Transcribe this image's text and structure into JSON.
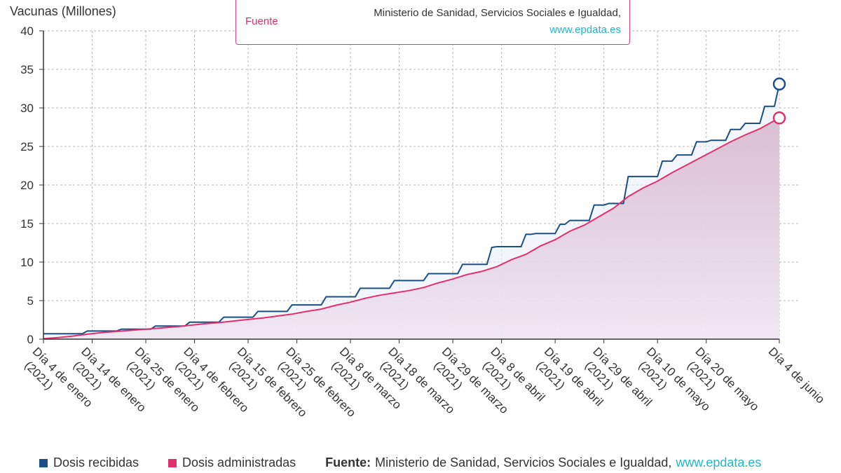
{
  "page": {
    "y_axis_title": "Vacunas (Millones)",
    "tooltip": {
      "label": "Fuente",
      "source": "Ministerio de Sanidad, Servicios Sociales e Igualdad,",
      "link": "www.epdata.es"
    },
    "legend": {
      "received": "Dosis recibidas",
      "administered": "Dosis administradas",
      "source_label": "Fuente:",
      "source_text": "Ministerio de Sanidad, Servicios Sociales e Igualdad,",
      "source_link": "www.epdata.es"
    }
  },
  "colors": {
    "received": "#1a4f86",
    "administered": "#e2306f",
    "grid": "#b5b5b5",
    "axis": "#333333",
    "link": "#1fb6d0"
  },
  "chart_data": {
    "type": "line",
    "ylabel": "Vacunas (Millones)",
    "ylim": [
      0,
      40
    ],
    "yticks": [
      0,
      5,
      10,
      15,
      20,
      25,
      30,
      35,
      40
    ],
    "grid": true,
    "legend_position": "bottom",
    "x_ticks": [
      {
        "day": 0,
        "line1": "Día 4 de enero",
        "line2": "(2021)"
      },
      {
        "day": 10,
        "line1": "Día 14 de enero",
        "line2": "(2021)"
      },
      {
        "day": 21,
        "line1": "Día 25 de enero",
        "line2": "(2021)"
      },
      {
        "day": 31,
        "line1": "Día 4 de febrero",
        "line2": "(2021)"
      },
      {
        "day": 42,
        "line1": "Día 15 de febrero",
        "line2": "(2021)"
      },
      {
        "day": 52,
        "line1": "Día 25 de febrero",
        "line2": "(2021)"
      },
      {
        "day": 63,
        "line1": "Día 8 de marzo",
        "line2": "(2021)"
      },
      {
        "day": 73,
        "line1": "Día 18 de marzo",
        "line2": "(2021)"
      },
      {
        "day": 84,
        "line1": "Día 29 de marzo",
        "line2": "(2021)"
      },
      {
        "day": 94,
        "line1": "Día 8 de abril",
        "line2": "(2021)"
      },
      {
        "day": 105,
        "line1": "Día 19 de abril",
        "line2": "(2021)"
      },
      {
        "day": 115,
        "line1": "Día 29 de abril",
        "line2": "(2021)"
      },
      {
        "day": 126,
        "line1": "Día 10 de mayo",
        "line2": "(2021)"
      },
      {
        "day": 136,
        "line1": "Día 20 de mayo",
        "line2": "(2021)"
      },
      {
        "day": 151,
        "line1": "Día 4 de junio",
        "line2": ""
      }
    ],
    "x_range": [
      0,
      151
    ],
    "series": [
      {
        "name": "Dosis recibidas",
        "color": "#1a4f86",
        "step": true,
        "points": [
          [
            0,
            0.7
          ],
          [
            8,
            0.7
          ],
          [
            9,
            1.05
          ],
          [
            15,
            1.05
          ],
          [
            16,
            1.3
          ],
          [
            22,
            1.3
          ],
          [
            23,
            1.7
          ],
          [
            29,
            1.7
          ],
          [
            30,
            2.2
          ],
          [
            36,
            2.2
          ],
          [
            37,
            2.85
          ],
          [
            43,
            2.85
          ],
          [
            44,
            3.6
          ],
          [
            50,
            3.6
          ],
          [
            51,
            4.45
          ],
          [
            57,
            4.45
          ],
          [
            58,
            5.5
          ],
          [
            64,
            5.5
          ],
          [
            65,
            6.6
          ],
          [
            71,
            6.6
          ],
          [
            72,
            7.6
          ],
          [
            78,
            7.6
          ],
          [
            79,
            8.5
          ],
          [
            85,
            8.5
          ],
          [
            86,
            9.7
          ],
          [
            91,
            9.7
          ],
          [
            92,
            11.9
          ],
          [
            93,
            12.0
          ],
          [
            98,
            12.0
          ],
          [
            99,
            13.6
          ],
          [
            100,
            13.6
          ],
          [
            101,
            13.7
          ],
          [
            105,
            13.7
          ],
          [
            106,
            14.9
          ],
          [
            107,
            14.9
          ],
          [
            108,
            15.4
          ],
          [
            112,
            15.4
          ],
          [
            113,
            17.4
          ],
          [
            115,
            17.4
          ],
          [
            116,
            17.6
          ],
          [
            119,
            17.6
          ],
          [
            120,
            21.1
          ],
          [
            126,
            21.1
          ],
          [
            127,
            23.1
          ],
          [
            129,
            23.1
          ],
          [
            130,
            23.9
          ],
          [
            133,
            23.9
          ],
          [
            134,
            25.6
          ],
          [
            136,
            25.6
          ],
          [
            137,
            25.8
          ],
          [
            140,
            25.8
          ],
          [
            141,
            27.2
          ],
          [
            143,
            27.2
          ],
          [
            144,
            28.0
          ],
          [
            147,
            28.0
          ],
          [
            148,
            30.2
          ],
          [
            150,
            30.2
          ],
          [
            151,
            33.1
          ]
        ]
      },
      {
        "name": "Dosis administradas",
        "color": "#e2306f",
        "step": false,
        "points": [
          [
            0,
            0.05
          ],
          [
            3,
            0.2
          ],
          [
            6,
            0.4
          ],
          [
            9,
            0.65
          ],
          [
            12,
            0.85
          ],
          [
            15,
            1.0
          ],
          [
            18,
            1.15
          ],
          [
            21,
            1.3
          ],
          [
            24,
            1.45
          ],
          [
            27,
            1.6
          ],
          [
            30,
            1.8
          ],
          [
            33,
            2.0
          ],
          [
            36,
            2.15
          ],
          [
            39,
            2.35
          ],
          [
            42,
            2.55
          ],
          [
            45,
            2.75
          ],
          [
            48,
            3.0
          ],
          [
            51,
            3.25
          ],
          [
            54,
            3.6
          ],
          [
            57,
            3.9
          ],
          [
            60,
            4.4
          ],
          [
            63,
            4.8
          ],
          [
            66,
            5.3
          ],
          [
            69,
            5.7
          ],
          [
            72,
            6.0
          ],
          [
            75,
            6.3
          ],
          [
            78,
            6.7
          ],
          [
            81,
            7.3
          ],
          [
            84,
            7.8
          ],
          [
            87,
            8.4
          ],
          [
            90,
            8.8
          ],
          [
            93,
            9.4
          ],
          [
            96,
            10.3
          ],
          [
            99,
            11.0
          ],
          [
            102,
            12.1
          ],
          [
            105,
            12.9
          ],
          [
            108,
            14.0
          ],
          [
            111,
            14.8
          ],
          [
            114,
            15.9
          ],
          [
            117,
            17.0
          ],
          [
            120,
            18.5
          ],
          [
            123,
            19.6
          ],
          [
            126,
            20.5
          ],
          [
            129,
            21.6
          ],
          [
            132,
            22.6
          ],
          [
            135,
            23.6
          ],
          [
            138,
            24.6
          ],
          [
            141,
            25.6
          ],
          [
            144,
            26.5
          ],
          [
            147,
            27.3
          ],
          [
            149,
            28.0
          ],
          [
            151,
            28.7
          ]
        ]
      }
    ]
  }
}
